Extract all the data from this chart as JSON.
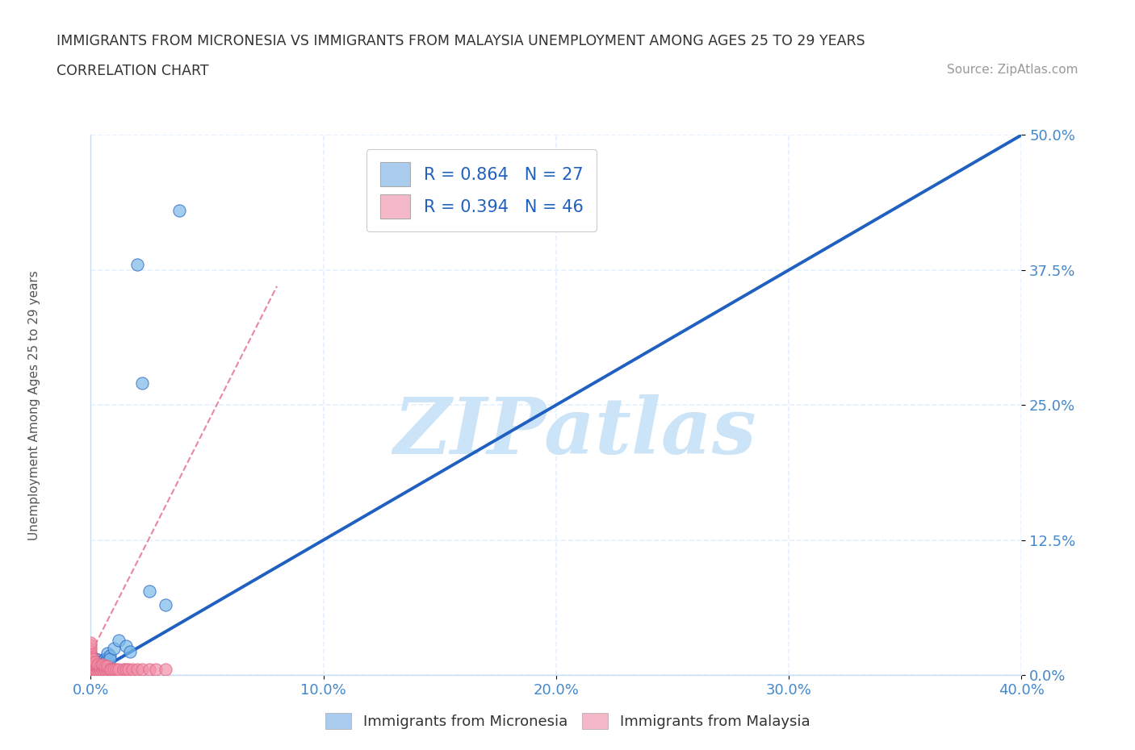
{
  "title_line1": "IMMIGRANTS FROM MICRONESIA VS IMMIGRANTS FROM MALAYSIA UNEMPLOYMENT AMONG AGES 25 TO 29 YEARS",
  "title_line2": "CORRELATION CHART",
  "source_text": "Source: ZipAtlas.com",
  "xlim": [
    0.0,
    0.4
  ],
  "ylim": [
    0.0,
    0.5
  ],
  "xticks": [
    0.0,
    0.1,
    0.2,
    0.3,
    0.4
  ],
  "yticks": [
    0.0,
    0.125,
    0.25,
    0.375,
    0.5
  ],
  "xticklabels": [
    "0.0%",
    "10.0%",
    "20.0%",
    "30.0%",
    "40.0%"
  ],
  "yticklabels": [
    "0.0%",
    "12.5%",
    "25.0%",
    "37.5%",
    "50.0%"
  ],
  "legend_entries": [
    {
      "label": "R = 0.864   N = 27",
      "color": "#aaccee"
    },
    {
      "label": "R = 0.394   N = 46",
      "color": "#f5b8c8"
    }
  ],
  "legend_label_blue": "Immigrants from Micronesia",
  "legend_label_pink": "Immigrants from Malaysia",
  "watermark": "ZIPatlas",
  "watermark_color": "#cce4f7",
  "micronesia_color": "#7ab8e8",
  "malaysia_color": "#f090a8",
  "micronesia_line_color": "#2060c0",
  "malaysia_line_color": "#e06080",
  "tick_color": "#4488cc",
  "background_color": "#ffffff",
  "grid_color": "#ddeeff",
  "ylabel": "Unemployment Among Ages 25 to 29 years",
  "micronesia_x": [
    0.001,
    0.001,
    0.002,
    0.002,
    0.002,
    0.003,
    0.003,
    0.003,
    0.004,
    0.004,
    0.005,
    0.005,
    0.006,
    0.006,
    0.007,
    0.007,
    0.008,
    0.008,
    0.01,
    0.012,
    0.015,
    0.017,
    0.02,
    0.022,
    0.025,
    0.032,
    0.038
  ],
  "micronesia_y": [
    0.005,
    0.01,
    0.008,
    0.015,
    0.01,
    0.012,
    0.008,
    0.014,
    0.01,
    0.012,
    0.013,
    0.01,
    0.015,
    0.012,
    0.016,
    0.02,
    0.018,
    0.015,
    0.025,
    0.032,
    0.027,
    0.022,
    0.38,
    0.27,
    0.078,
    0.065,
    0.43
  ],
  "malaysia_x": [
    0.0,
    0.0,
    0.0,
    0.0,
    0.0,
    0.0,
    0.0,
    0.0,
    0.0,
    0.0,
    0.0,
    0.001,
    0.001,
    0.001,
    0.001,
    0.001,
    0.002,
    0.002,
    0.002,
    0.002,
    0.003,
    0.003,
    0.003,
    0.004,
    0.004,
    0.005,
    0.005,
    0.005,
    0.006,
    0.006,
    0.007,
    0.007,
    0.008,
    0.009,
    0.01,
    0.011,
    0.012,
    0.014,
    0.015,
    0.016,
    0.018,
    0.02,
    0.022,
    0.025,
    0.028,
    0.032
  ],
  "malaysia_y": [
    0.005,
    0.008,
    0.01,
    0.012,
    0.015,
    0.018,
    0.02,
    0.022,
    0.025,
    0.028,
    0.03,
    0.005,
    0.008,
    0.01,
    0.012,
    0.015,
    0.005,
    0.008,
    0.01,
    0.012,
    0.005,
    0.008,
    0.01,
    0.005,
    0.008,
    0.005,
    0.008,
    0.01,
    0.005,
    0.008,
    0.005,
    0.008,
    0.005,
    0.005,
    0.005,
    0.005,
    0.005,
    0.005,
    0.005,
    0.005,
    0.005,
    0.005,
    0.005,
    0.005,
    0.005,
    0.005
  ],
  "mic_trend_x": [
    0.0,
    0.4
  ],
  "mic_trend_y": [
    0.0,
    0.5
  ],
  "mal_trend_x": [
    0.0,
    0.08
  ],
  "mal_trend_y": [
    0.02,
    0.36
  ]
}
